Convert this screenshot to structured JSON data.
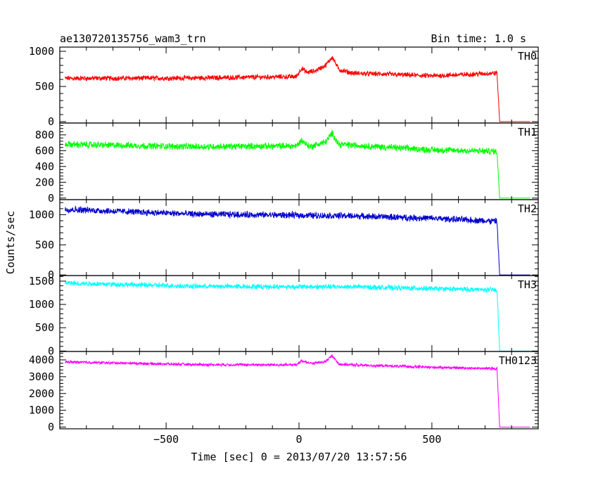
{
  "header": {
    "title": "ae130720135756_wam3_trn",
    "bin_time": "Bin time: 1.0 s"
  },
  "chart_data": {
    "type": "line",
    "ylabel": "Counts/sec",
    "xlabel": "Time [sec] 0 = 2013/07/20 13:57:56",
    "xlim": [
      -900,
      900
    ],
    "x_ticks": [
      -500,
      0,
      500
    ],
    "x_tick_labels": [
      "−500",
      "0",
      "500"
    ],
    "panels": [
      {
        "name": "TH0",
        "color": "#ff0000",
        "ylim": [
          -20,
          1060
        ],
        "y_ticks": [
          0,
          500,
          1000
        ],
        "noise": 30,
        "keypoints": [
          [
            -880,
            615
          ],
          [
            -400,
            620
          ],
          [
            -10,
            640
          ],
          [
            10,
            760
          ],
          [
            30,
            700
          ],
          [
            60,
            720
          ],
          [
            100,
            800
          ],
          [
            125,
            920
          ],
          [
            150,
            740
          ],
          [
            200,
            690
          ],
          [
            500,
            650
          ],
          [
            745,
            690
          ],
          [
            755,
            0
          ],
          [
            870,
            0
          ]
        ]
      },
      {
        "name": "TH1",
        "color": "#00ff00",
        "ylim": [
          -20,
          950
        ],
        "y_ticks": [
          0,
          200,
          400,
          600,
          800
        ],
        "noise": 35,
        "keypoints": [
          [
            -880,
            680
          ],
          [
            -400,
            650
          ],
          [
            -10,
            660
          ],
          [
            10,
            730
          ],
          [
            40,
            650
          ],
          [
            100,
            710
          ],
          [
            125,
            820
          ],
          [
            150,
            680
          ],
          [
            500,
            610
          ],
          [
            745,
            590
          ],
          [
            755,
            0
          ],
          [
            870,
            0
          ]
        ]
      },
      {
        "name": "TH2",
        "color": "#0000cc",
        "ylim": [
          -10,
          1250
        ],
        "y_ticks": [
          0,
          500,
          1000
        ],
        "noise": 45,
        "keypoints": [
          [
            -880,
            1090
          ],
          [
            -400,
            1010
          ],
          [
            0,
            990
          ],
          [
            200,
            980
          ],
          [
            500,
            940
          ],
          [
            745,
            890
          ],
          [
            755,
            0
          ],
          [
            870,
            0
          ]
        ]
      },
      {
        "name": "TH3",
        "color": "#00ffff",
        "ylim": [
          -10,
          1620
        ],
        "y_ticks": [
          0,
          500,
          1000,
          1500
        ],
        "noise": 45,
        "keypoints": [
          [
            -880,
            1460
          ],
          [
            -400,
            1390
          ],
          [
            0,
            1380
          ],
          [
            200,
            1380
          ],
          [
            500,
            1340
          ],
          [
            745,
            1310
          ],
          [
            755,
            0
          ],
          [
            870,
            0
          ]
        ]
      },
      {
        "name": "TH0123",
        "color": "#ff00ff",
        "ylim": [
          -100,
          4500
        ],
        "y_ticks": [
          0,
          1000,
          2000,
          3000,
          4000
        ],
        "tick_labels": [
          "0",
          "1000",
          "2000",
          "3000",
          "4000"
        ],
        "noise": 70,
        "keypoints": [
          [
            -880,
            3880
          ],
          [
            -400,
            3720
          ],
          [
            -10,
            3700
          ],
          [
            10,
            3950
          ],
          [
            50,
            3780
          ],
          [
            100,
            3900
          ],
          [
            125,
            4250
          ],
          [
            150,
            3750
          ],
          [
            200,
            3700
          ],
          [
            500,
            3560
          ],
          [
            745,
            3480
          ],
          [
            755,
            0
          ],
          [
            870,
            0
          ]
        ]
      }
    ]
  }
}
